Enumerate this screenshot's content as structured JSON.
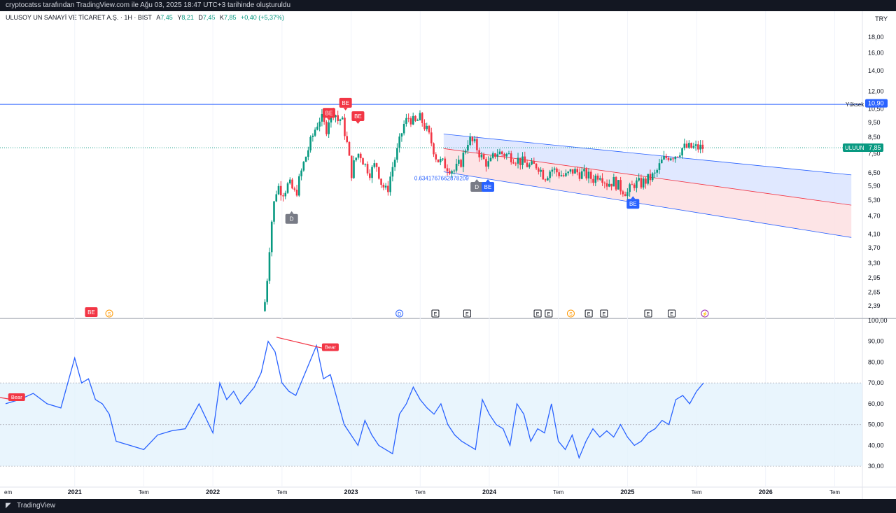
{
  "header": {
    "attribution": "cryptocatss tarafından TradingView.com ile Ağu 03, 2025 18:47 UTC+3 tarihinde oluşturuldu"
  },
  "legend": {
    "symbol": "ULUSOY UN SANAYİ VE TİCARET A.Ş. · 1H · BIST",
    "open_label": "A",
    "open": "7,45",
    "high_label": "Y",
    "high": "8,21",
    "low_label": "D",
    "low": "7,45",
    "close_label": "K",
    "close": "7,85",
    "change": "+0,40 (+5,37%)"
  },
  "currency": "TRY",
  "footer": {
    "brand": "TradingView"
  },
  "colors": {
    "up": "#089981",
    "down": "#f23645",
    "blue": "#2962ff",
    "rsi": "#2962ff",
    "channel_up": "#dde5ff",
    "channel_down": "#fde1e3"
  },
  "chart_data": [
    {
      "type": "candlestick",
      "scale": "log",
      "ylim": [
        2.2,
        19.5
      ],
      "y_ticks": [
        "18,00",
        "16,00",
        "14,00",
        "12,00",
        "10,50",
        "9,50",
        "8,50",
        "7,50",
        "6,50",
        "5,90",
        "5,30",
        "4,70",
        "4,10",
        "3,70",
        "3,30",
        "2,95",
        "2,65",
        "2,39"
      ],
      "y_tick_values": [
        18,
        16,
        14,
        12,
        10.5,
        9.5,
        8.5,
        7.5,
        6.5,
        5.9,
        5.3,
        4.7,
        4.1,
        3.7,
        3.3,
        2.95,
        2.65,
        2.39
      ],
      "x_ticks": [
        "2021",
        "Tem",
        "2022",
        "Tem",
        "2023",
        "Tem",
        "2024",
        "Tem",
        "2025",
        "Tem",
        "2026",
        "Tem"
      ],
      "x_tick_values": [
        2021.0,
        2021.5,
        2022.0,
        2022.5,
        2023.0,
        2023.5,
        2024.0,
        2024.5,
        2025.0,
        2025.5,
        2026.0,
        2026.5
      ],
      "x_left_label": "em",
      "horizontal_line": {
        "value": 10.87,
        "label": "Yüksek",
        "value_label": "10,87"
      },
      "price_tags": [
        {
          "text": "10,90",
          "value": 10.9
        },
        {
          "text": "ULUUN",
          "value2": "7,85",
          "value": 7.85
        }
      ],
      "channel_label": "0.6341767662878209",
      "close_points": {
        "x": [
          2022.36,
          2022.38,
          2022.4,
          2022.42,
          2022.44,
          2022.46,
          2022.48,
          2022.5,
          2022.52,
          2022.55,
          2022.6,
          2022.65,
          2022.7,
          2022.75,
          2022.78,
          2022.82,
          2022.85,
          2022.88,
          2022.9,
          2022.93,
          2022.96,
          2022.98,
          2023.0,
          2023.03,
          2023.06,
          2023.1,
          2023.14,
          2023.18,
          2023.22,
          2023.26,
          2023.3,
          2023.34,
          2023.38,
          2023.42,
          2023.46,
          2023.5,
          2023.54,
          2023.58,
          2023.62,
          2023.66,
          2023.7,
          2023.75,
          2023.8,
          2023.85,
          2023.9,
          2023.95,
          2024.0,
          2024.05,
          2024.1,
          2024.15,
          2024.2,
          2024.25,
          2024.3,
          2024.35,
          2024.4,
          2024.45,
          2024.5,
          2024.55,
          2024.6,
          2024.65,
          2024.7,
          2024.75,
          2024.8,
          2024.85,
          2024.9,
          2024.95,
          2025.0,
          2025.05,
          2025.1,
          2025.15,
          2025.2,
          2025.25,
          2025.3,
          2025.35,
          2025.4,
          2025.45,
          2025.5,
          2025.55
        ],
        "y": [
          2.3,
          2.5,
          3.2,
          4.3,
          5.1,
          5.7,
          5.9,
          5.6,
          5.7,
          6.0,
          5.5,
          6.8,
          8.0,
          9.3,
          9.9,
          9.0,
          10.2,
          10.4,
          9.6,
          9.8,
          8.6,
          7.6,
          6.4,
          7.2,
          7.6,
          6.9,
          6.5,
          7.0,
          6.0,
          5.6,
          6.8,
          7.8,
          9.3,
          9.9,
          9.4,
          9.8,
          9.1,
          8.2,
          7.2,
          7.0,
          6.8,
          6.6,
          7.1,
          8.4,
          8.0,
          7.2,
          6.9,
          7.6,
          7.5,
          7.4,
          7.2,
          7.0,
          6.8,
          6.9,
          6.3,
          6.7,
          6.5,
          6.3,
          6.6,
          6.5,
          6.4,
          6.2,
          6.5,
          6.0,
          6.1,
          5.8,
          5.6,
          6.0,
          6.0,
          6.2,
          6.4,
          7.1,
          7.4,
          7.45,
          7.85,
          7.85,
          7.85,
          7.85
        ]
      },
      "event_markers": [
        {
          "text": "BE",
          "kind": "sell",
          "x": 2022.84,
          "value": 10.2
        },
        {
          "text": "BE",
          "kind": "sell",
          "x": 2022.96,
          "value": 11.0
        },
        {
          "text": "BE",
          "kind": "sell",
          "x": 2023.05,
          "value": 9.95
        },
        {
          "text": "D",
          "kind": "neutral",
          "x": 2022.57,
          "value": 4.6
        },
        {
          "text": "D",
          "kind": "neutral",
          "x": 2023.91,
          "value": 5.85
        },
        {
          "text": "BE",
          "kind": "buy",
          "x": 2023.99,
          "value": 5.85
        },
        {
          "text": "BE",
          "kind": "buy",
          "x": 2025.04,
          "value": 5.15
        }
      ],
      "bottom_events": [
        {
          "text": "BE",
          "x": 2021.12,
          "kind": "sell"
        },
        {
          "text": "S",
          "x": 2021.25,
          "kind": "dividend"
        },
        {
          "text": "D",
          "x": 2023.35,
          "kind": "d"
        },
        {
          "text": "E",
          "x": 2023.61,
          "kind": "earn"
        },
        {
          "text": "E",
          "x": 2023.84,
          "kind": "earn"
        },
        {
          "text": "E",
          "x": 2024.35,
          "kind": "earn"
        },
        {
          "text": "E",
          "x": 2024.43,
          "kind": "earn"
        },
        {
          "text": "S",
          "x": 2024.59,
          "kind": "dividend"
        },
        {
          "text": "E",
          "x": 2024.72,
          "kind": "earn"
        },
        {
          "text": "E",
          "x": 2024.83,
          "kind": "earn"
        },
        {
          "text": "E",
          "x": 2025.15,
          "kind": "earn"
        },
        {
          "text": "E",
          "x": 2025.32,
          "kind": "earn"
        },
        {
          "text": "⚡",
          "x": 2025.56,
          "kind": "flash"
        }
      ]
    },
    {
      "type": "line",
      "ylim": [
        25,
        100
      ],
      "y_ticks": [
        "100,00",
        "90,00",
        "80,00",
        "70,00",
        "60,00",
        "50,00",
        "40,00",
        "30,00"
      ],
      "y_tick_values": [
        100,
        90,
        80,
        70,
        60,
        50,
        40,
        30
      ],
      "band": [
        30,
        70
      ],
      "x": [
        2020.5,
        2020.6,
        2020.7,
        2020.8,
        2020.9,
        2021.0,
        2021.05,
        2021.1,
        2021.15,
        2021.2,
        2021.25,
        2021.3,
        2021.4,
        2021.5,
        2021.6,
        2021.7,
        2021.8,
        2021.9,
        2022.0,
        2022.05,
        2022.1,
        2022.15,
        2022.2,
        2022.25,
        2022.3,
        2022.35,
        2022.4,
        2022.45,
        2022.5,
        2022.55,
        2022.6,
        2022.65,
        2022.7,
        2022.75,
        2022.8,
        2022.85,
        2022.9,
        2022.95,
        2023.0,
        2023.05,
        2023.1,
        2023.15,
        2023.2,
        2023.25,
        2023.3,
        2023.35,
        2023.4,
        2023.45,
        2023.5,
        2023.55,
        2023.6,
        2023.65,
        2023.7,
        2023.75,
        2023.8,
        2023.85,
        2023.9,
        2023.95,
        2024.0,
        2024.05,
        2024.1,
        2024.15,
        2024.2,
        2024.25,
        2024.3,
        2024.35,
        2024.4,
        2024.45,
        2024.5,
        2024.55,
        2024.6,
        2024.65,
        2024.7,
        2024.75,
        2024.8,
        2024.85,
        2024.9,
        2024.95,
        2025.0,
        2025.05,
        2025.1,
        2025.15,
        2025.2,
        2025.25,
        2025.3,
        2025.35,
        2025.4,
        2025.45,
        2025.5,
        2025.55
      ],
      "values": [
        60,
        62,
        65,
        60,
        58,
        82,
        70,
        72,
        62,
        60,
        55,
        42,
        40,
        38,
        45,
        47,
        48,
        60,
        46,
        70,
        62,
        66,
        60,
        64,
        68,
        75,
        90,
        85,
        70,
        66,
        64,
        72,
        80,
        88,
        72,
        74,
        62,
        50,
        45,
        40,
        52,
        45,
        40,
        38,
        36,
        55,
        60,
        68,
        62,
        58,
        55,
        60,
        50,
        45,
        42,
        40,
        38,
        62,
        55,
        50,
        48,
        40,
        60,
        55,
        42,
        48,
        46,
        60,
        42,
        38,
        45,
        34,
        42,
        48,
        44,
        47,
        44,
        50,
        44,
        40,
        42,
        46,
        48,
        52,
        50,
        62,
        64,
        60,
        66,
        70
      ]
    }
  ],
  "rsi_annotations": {
    "bear_labels": [
      {
        "text": "Bear",
        "x": 2020.58,
        "value": 63
      },
      {
        "text": "Bear",
        "x": 2022.85,
        "value": 87
      }
    ]
  }
}
